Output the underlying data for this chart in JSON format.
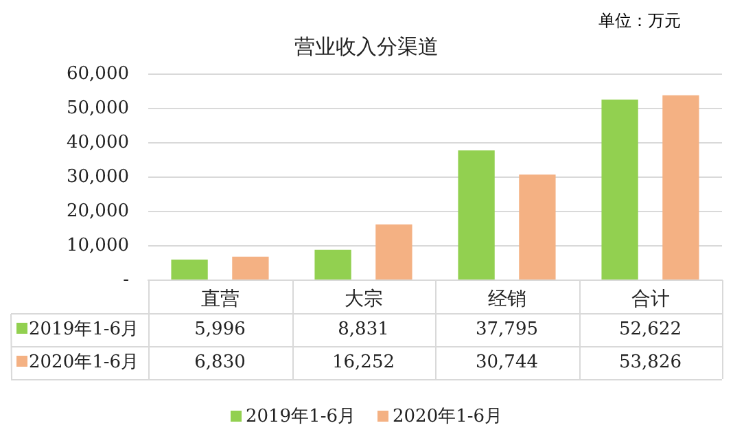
{
  "chart_data": {
    "type": "bar",
    "title": "营业收入分渠道",
    "annotations": [
      "单位：万元"
    ],
    "categories": [
      "直营",
      "大宗",
      "经销",
      "合计"
    ],
    "series": [
      {
        "name": "2019年1-6月",
        "color": "#92d050",
        "values": [
          5996,
          8831,
          37795,
          52622
        ],
        "value_labels": [
          "5,996",
          "8,831",
          "37,795",
          "52,622"
        ]
      },
      {
        "name": "2020年1-6月",
        "color": "#f4b183",
        "values": [
          6830,
          16252,
          30744,
          53826
        ],
        "value_labels": [
          "6,830",
          "16,252",
          "30,744",
          "53,826"
        ]
      }
    ],
    "ylim": [
      0,
      60000
    ],
    "yticks": [
      {
        "value": 0,
        "label": "-"
      },
      {
        "value": 10000,
        "label": "10,000"
      },
      {
        "value": 20000,
        "label": "20,000"
      },
      {
        "value": 30000,
        "label": "30,000"
      },
      {
        "value": 40000,
        "label": "40,000"
      },
      {
        "value": 50000,
        "label": "50,000"
      },
      {
        "value": 60000,
        "label": "60,000"
      }
    ],
    "grid": "y",
    "legend": "bottom"
  }
}
